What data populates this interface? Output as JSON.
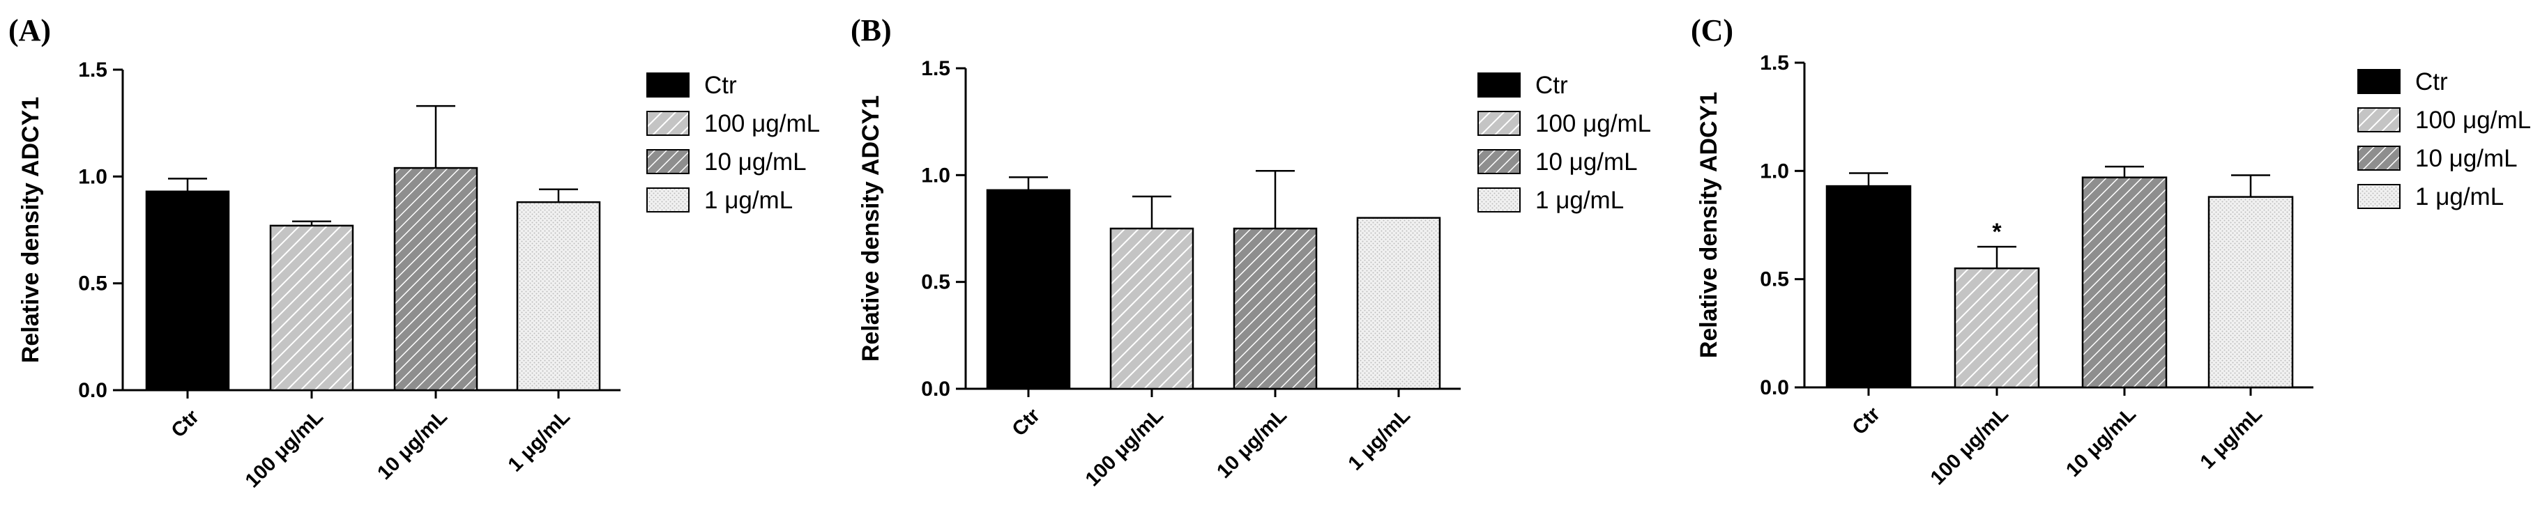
{
  "panels": [
    {
      "label": "(A)"
    },
    {
      "label": "(B)"
    },
    {
      "label": "(C)"
    }
  ],
  "colors": {
    "ctr": "#000000",
    "hatch_light": "#c4c4c4",
    "hatch_dark": "#9a9a9a",
    "dotted": "#ececec"
  },
  "chart_data": [
    {
      "type": "bar",
      "panel": "(A)",
      "ylabel": "Relative density ADCY1",
      "ylim": [
        0,
        1.5
      ],
      "yticks": [
        "0.0",
        "0.5",
        "1.0",
        "1.5"
      ],
      "categories": [
        "Ctr",
        "100 μg/mL",
        "10  μg/mL",
        "1 μg/mL"
      ],
      "values": [
        0.93,
        0.77,
        1.04,
        0.88
      ],
      "errors": [
        0.06,
        0.02,
        0.29,
        0.06
      ],
      "annotations": [
        "",
        "",
        "",
        ""
      ],
      "legend": [
        "Ctr",
        "100 μg/mL",
        "10  μg/mL",
        "1 μg/mL"
      ],
      "legend_position": "right"
    },
    {
      "type": "bar",
      "panel": "(B)",
      "ylabel": "Relative density ADCY1",
      "ylim": [
        0,
        1.5
      ],
      "yticks": [
        "0.0",
        "0.5",
        "1.0",
        "1.5"
      ],
      "categories": [
        "Ctr",
        "100 μg/mL",
        "10  μg/mL",
        "1 μg/mL"
      ],
      "values": [
        0.93,
        0.75,
        0.75,
        0.8
      ],
      "errors": [
        0.06,
        0.15,
        0.27,
        0
      ],
      "annotations": [
        "",
        "",
        "",
        ""
      ],
      "legend": [
        "Ctr",
        "100 μg/mL",
        "10  μg/mL",
        "1 μg/mL"
      ],
      "legend_position": "right"
    },
    {
      "type": "bar",
      "panel": "(C)",
      "ylabel": "Relative density ADCY1",
      "ylim": [
        0,
        1.5
      ],
      "yticks": [
        "0.0",
        "0.5",
        "1.0",
        "1.5"
      ],
      "categories": [
        "Ctr",
        "100 μg/mL",
        "10  μg/mL",
        "1  μg/mL"
      ],
      "values": [
        0.93,
        0.55,
        0.97,
        0.88
      ],
      "errors": [
        0.06,
        0.1,
        0.05,
        0.1
      ],
      "annotations": [
        "",
        "*",
        "",
        ""
      ],
      "legend": [
        "Ctr",
        "100 μg/mL",
        "10  μg/mL",
        "1  μg/mL"
      ],
      "legend_position": "right"
    }
  ]
}
